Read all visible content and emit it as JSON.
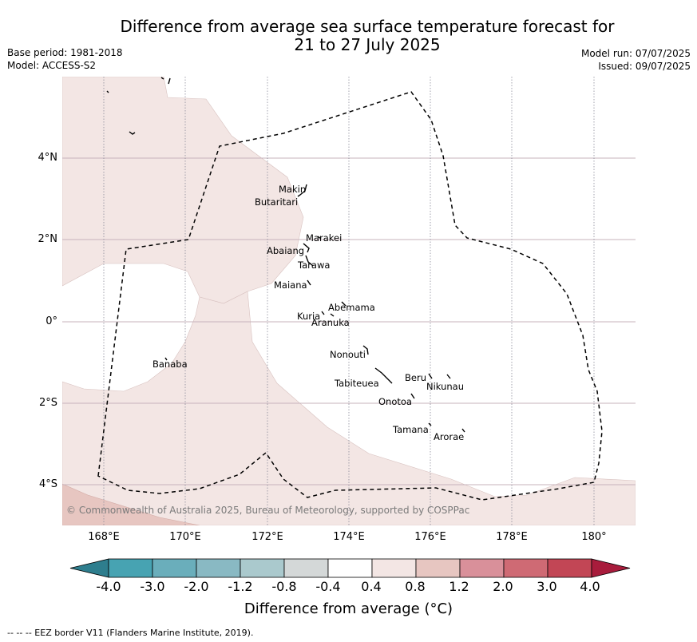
{
  "title_line1": "Difference from average sea surface temperature forecast for",
  "title_line2": "21 to 27 July 2025",
  "meta": {
    "base_period": "Base period: 1981-2018",
    "model": "Model: ACCESS-S2",
    "model_run": "Model run: 07/07/2025",
    "issued": "Issued: 09/07/2025"
  },
  "axes": {
    "lat_labels": [
      "4°N",
      "2°N",
      "0°",
      "2°S",
      "4°S"
    ],
    "lon_labels": [
      "168°E",
      "170°E",
      "172°E",
      "174°E",
      "176°E",
      "178°E",
      "180°"
    ]
  },
  "islands": [
    "Makin",
    "Butaritari",
    "Marakei",
    "Abaiang",
    "Tarawa",
    "Maiana",
    "Abemama",
    "Kuria",
    "Aranuka",
    "Banaba",
    "Nonouti",
    "Tabiteuea",
    "Beru",
    "Nikunau",
    "Onotoa",
    "Tamana",
    "Arorae"
  ],
  "copyright": "© Commonwealth of Australia 2025, Bureau of Meteorology, supported by COSPPac",
  "colorbar": {
    "ticks": [
      "-4.0",
      "-3.0",
      "-2.0",
      "-1.2",
      "-0.8",
      "-0.4",
      "0.4",
      "0.8",
      "1.2",
      "2.0",
      "3.0",
      "4.0"
    ],
    "colors": [
      "#2e7e8e",
      "#47a3b2",
      "#6aaebb",
      "#89b9c3",
      "#aac9cd",
      "#d4d8d8",
      "#ffffff",
      "#f3e6e4",
      "#e7c6c1",
      "#d9909a",
      "#cf6a74",
      "#c24655",
      "#a81c3c"
    ],
    "title": "Difference from average (°C)"
  },
  "legend_footer": "--  --  -- EEZ border V11 (Flanders Marine Institute, 2019).",
  "colors": {
    "warm_fill": "#f3e6e4",
    "warmer_fill": "#e7c6c1",
    "grid": "#c7b3bb"
  }
}
